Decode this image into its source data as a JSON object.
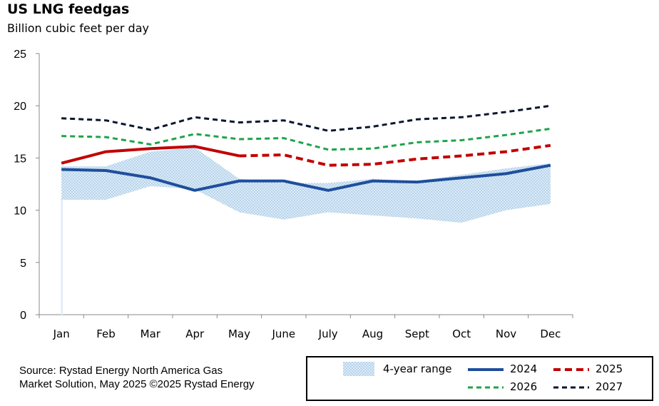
{
  "chart_data": {
    "type": "line",
    "title": "US LNG feedgas",
    "subtitle": "Billion cubic feet per day",
    "categories": [
      "Jan",
      "Feb",
      "Mar",
      "Apr",
      "May",
      "June",
      "July",
      "Aug",
      "Sept",
      "Oct",
      "Nov",
      "Dec"
    ],
    "ylim": [
      0,
      25
    ],
    "yticks": [
      0,
      5,
      10,
      15,
      20,
      25
    ],
    "range": {
      "name": "4-year range",
      "low": [
        11.0,
        11.0,
        12.3,
        12.0,
        9.8,
        9.1,
        9.8,
        9.5,
        9.2,
        8.8,
        10.0,
        10.6
      ],
      "high": [
        14.2,
        14.2,
        15.6,
        16.0,
        13.0,
        12.6,
        12.6,
        13.0,
        12.8,
        13.4,
        14.0,
        14.5
      ],
      "color": "#bcd7ec"
    },
    "series": [
      {
        "name": "2024",
        "values": [
          13.9,
          13.8,
          13.1,
          11.9,
          12.8,
          12.8,
          11.9,
          12.8,
          12.7,
          13.1,
          13.5,
          14.3
        ],
        "color": "#1f4e9c",
        "style": "solid"
      },
      {
        "name": "2025",
        "values": [
          14.5,
          15.6,
          15.9,
          16.1,
          15.2,
          15.3,
          14.3,
          14.4,
          14.9,
          15.2,
          15.6,
          16.2
        ],
        "color": "#c00000",
        "style": "solid-then-dashed",
        "actual_through_index": 4
      },
      {
        "name": "2026",
        "values": [
          17.1,
          17.0,
          16.3,
          17.3,
          16.8,
          16.9,
          15.8,
          15.9,
          16.5,
          16.7,
          17.2,
          17.8
        ],
        "color": "#1fa34a",
        "style": "dashed"
      },
      {
        "name": "2027",
        "values": [
          18.8,
          18.6,
          17.7,
          18.9,
          18.4,
          18.6,
          17.6,
          18.0,
          18.7,
          18.9,
          19.4,
          20.0
        ],
        "color": "#0b1630",
        "style": "dashed"
      }
    ]
  },
  "source": {
    "line1": "Source: Rystad Energy North America Gas",
    "line2": "Market Solution, May 2025 ©2025 Rystad Energy"
  }
}
